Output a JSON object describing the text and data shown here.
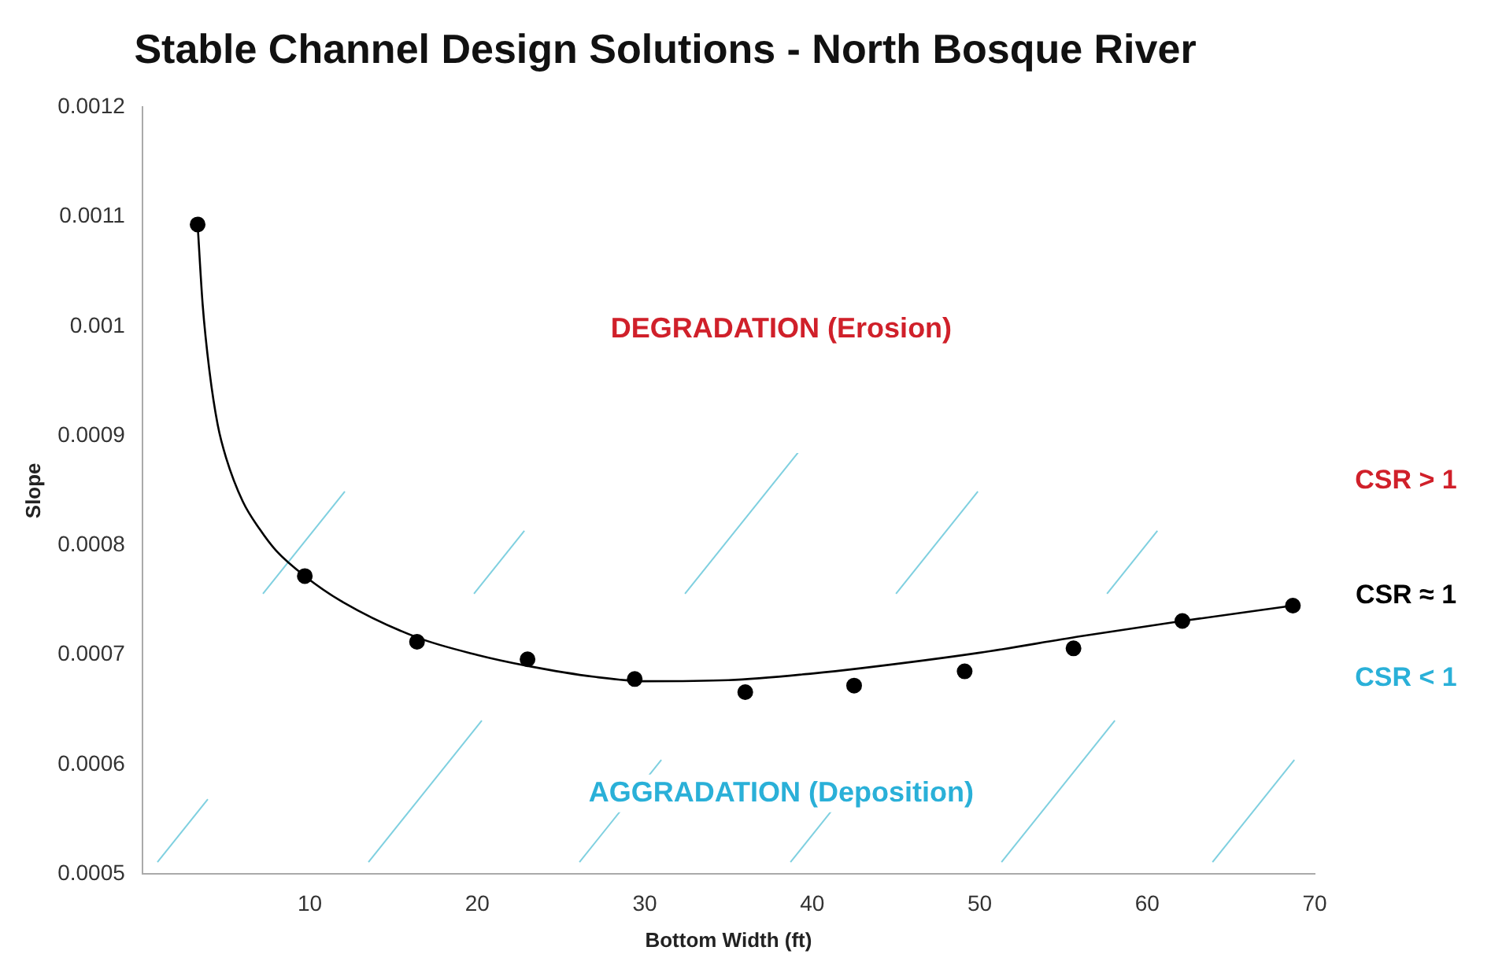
{
  "chart_data": {
    "type": "scatter",
    "title": "Stable Channel Design Solutions - North Bosque River",
    "xlabel": "Bottom Width (ft)",
    "ylabel": "Slope",
    "annotations": [
      "DEGRADATION (Erosion)",
      "AGGRADATION (Deposition)",
      "CSR > 1",
      "CSR ≈ 1",
      "CSR < 1"
    ],
    "series": [
      {
        "color": "#000000",
        "marker": "circle",
        "x": [
          3.3,
          9.7,
          16.4,
          23.0,
          29.4,
          36.0,
          42.5,
          49.1,
          55.6,
          62.1,
          68.7
        ],
        "values": [
          0.001093,
          0.000772,
          0.000712,
          0.000696,
          0.000678,
          0.000666,
          0.000672,
          0.000685,
          0.000706,
          0.000731,
          0.000745
        ]
      },
      {
        "type": "line",
        "color": "#000000",
        "marker": "none",
        "line_style": "solid",
        "x": [
          3.3,
          3.6,
          4.0,
          4.5,
          5.0,
          6.0,
          7.0,
          8.0,
          9.7,
          12.0,
          16.4,
          20.0,
          23.0,
          27.0,
          30.0,
          35.0,
          40.0,
          43.0,
          50.0,
          56.0,
          62.1,
          68.7
        ],
        "values": [
          0.001093,
          0.00102,
          0.00096,
          0.00091,
          0.00088,
          0.00084,
          0.000815,
          0.000795,
          0.000772,
          0.000748,
          0.000716,
          0.0007,
          0.00069,
          0.00068,
          0.000676,
          0.000677,
          0.000683,
          0.000688,
          0.000702,
          0.000717,
          0.000731,
          0.000745
        ]
      }
    ],
    "xlim": [
      0,
      70
    ],
    "xticks": [
      10,
      20,
      30,
      40,
      50,
      60,
      70
    ],
    "ylim": [
      0.0005,
      0.0012
    ],
    "yticks": [
      0.0005,
      0.0006,
      0.0007,
      0.0008,
      0.0009,
      0.001,
      0.0011,
      0.0012
    ],
    "grid": false,
    "legend": false
  }
}
